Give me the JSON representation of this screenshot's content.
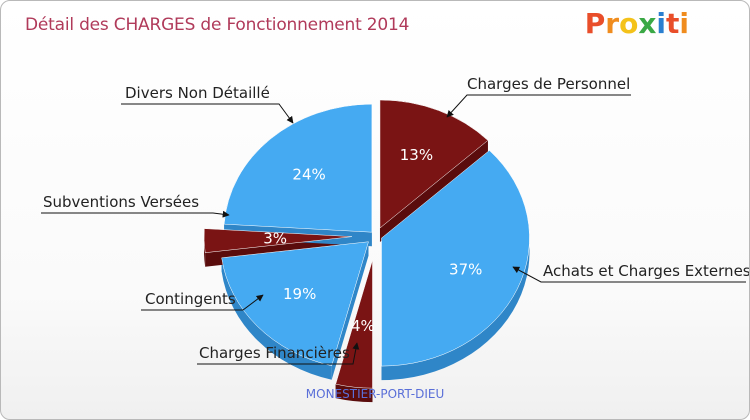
{
  "title": "Détail des CHARGES de Fonctionnement 2014",
  "logo": {
    "text": "Proxiti",
    "letters": [
      "P",
      "r",
      "o",
      "x",
      "i",
      "t",
      "i"
    ],
    "colors": [
      "#e94e2a",
      "#f08c1e",
      "#f4c21a",
      "#3aa845",
      "#2a7fd0",
      "#e94e2a",
      "#f08c1e"
    ]
  },
  "footer": "MONESTIER-PORT-DIEU",
  "chart_data": {
    "type": "pie",
    "title": "Détail des CHARGES de Fonctionnement 2014",
    "slices": [
      {
        "label": "Charges de Personnel",
        "value": 13,
        "pct_label": "13%",
        "color": "#7a1414",
        "side": "#5a0c0c"
      },
      {
        "label": "Achats et Charges Externes",
        "value": 37,
        "pct_label": "37%",
        "color": "#45aaf2",
        "side": "#2f86c8"
      },
      {
        "label": "Charges Financières",
        "value": 4,
        "pct_label": "4%",
        "color": "#7a1414",
        "side": "#5a0c0c"
      },
      {
        "label": "Contingents",
        "value": 19,
        "pct_label": "19%",
        "color": "#45aaf2",
        "side": "#2f86c8"
      },
      {
        "label": "Subventions Versées",
        "value": 3,
        "pct_label": "3%",
        "color": "#7a1414",
        "side": "#5a0c0c"
      },
      {
        "label": "Divers Non Détaillé",
        "value": 24,
        "pct_label": "24%",
        "color": "#45aaf2",
        "side": "#2f86c8"
      }
    ]
  }
}
